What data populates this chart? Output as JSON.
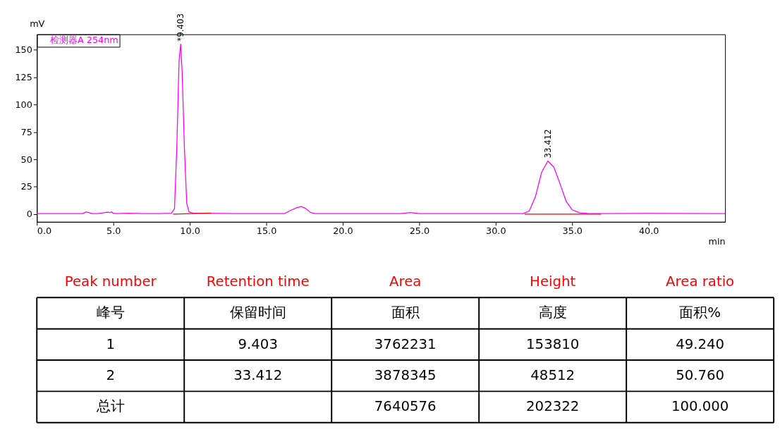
{
  "chart_data": {
    "type": "line",
    "xlabel": "min",
    "ylabel": "mV",
    "xlim": [
      0,
      45
    ],
    "ylim": [
      -7,
      164
    ],
    "xticks": [
      {
        "value": 0,
        "label": "0.0"
      },
      {
        "value": 5,
        "label": "5.0"
      },
      {
        "value": 10,
        "label": "10.0"
      },
      {
        "value": 15,
        "label": "15.0"
      },
      {
        "value": 20,
        "label": "20.0"
      },
      {
        "value": 25,
        "label": "25.0"
      },
      {
        "value": 30,
        "label": "30.0"
      },
      {
        "value": 35,
        "label": "35.0"
      },
      {
        "value": 40,
        "label": "40.0"
      }
    ],
    "yticks": [
      0,
      25,
      50,
      75,
      100,
      125,
      150
    ],
    "grid": false,
    "legend": "top left",
    "series": [
      {
        "name": "检测器A 254nm",
        "color": "#ff00ff",
        "x": [
          0,
          3.0,
          3.2,
          3.4,
          3.6,
          4.0,
          4.6,
          4.8,
          4.9,
          5.0,
          5.2,
          6.0,
          7,
          8,
          8.8,
          9.0,
          9.15,
          9.3,
          9.403,
          9.5,
          9.65,
          9.8,
          9.95,
          10.2,
          12,
          13,
          15,
          16.2,
          16.6,
          17.0,
          17.3,
          17.6,
          17.9,
          18.2,
          20,
          23.8,
          24.4,
          25.0,
          30,
          31.8,
          32.2,
          32.6,
          33.0,
          33.412,
          33.8,
          34.2,
          34.6,
          35.0,
          35.5,
          36,
          37,
          40,
          45
        ],
        "values": [
          0.5,
          0.5,
          2,
          1.5,
          0.5,
          0.5,
          1.8,
          1.5,
          2,
          0.8,
          0.6,
          0.8,
          0.5,
          0.6,
          0.8,
          5,
          60,
          140,
          155,
          130,
          60,
          10,
          2,
          1,
          0.7,
          0.5,
          0.5,
          0.6,
          3.5,
          6,
          7,
          5,
          1.5,
          0.6,
          0.5,
          0.5,
          1.5,
          0.6,
          0.5,
          0.5,
          3,
          16,
          38,
          48.5,
          43,
          28,
          12,
          4,
          1.2,
          0.7,
          0.5,
          0.7,
          0.5
        ]
      },
      {
        "color": "#ff0000",
        "x": [
          8.9,
          11.4
        ],
        "values": [
          0,
          1
        ]
      },
      {
        "color": "#ff0000",
        "x": [
          31.9,
          36.9
        ],
        "values": [
          0,
          0
        ]
      }
    ],
    "annotations": [
      {
        "text": "*9.403",
        "x": 9.403,
        "y": 155
      },
      {
        "text": "33.412",
        "x": 33.412,
        "y": 48.5
      },
      "Peak number",
      "Retention time",
      "Area",
      "Height",
      "Area ratio",
      "峰号",
      "保留时间",
      "面积",
      "高度",
      "面积%",
      "1",
      "9.403",
      "3762231",
      "153810",
      "49.240",
      "2",
      "33.412",
      "3878345",
      "48512",
      "50.760",
      "总计",
      "7640576",
      "202322",
      "100.000"
    ]
  }
}
